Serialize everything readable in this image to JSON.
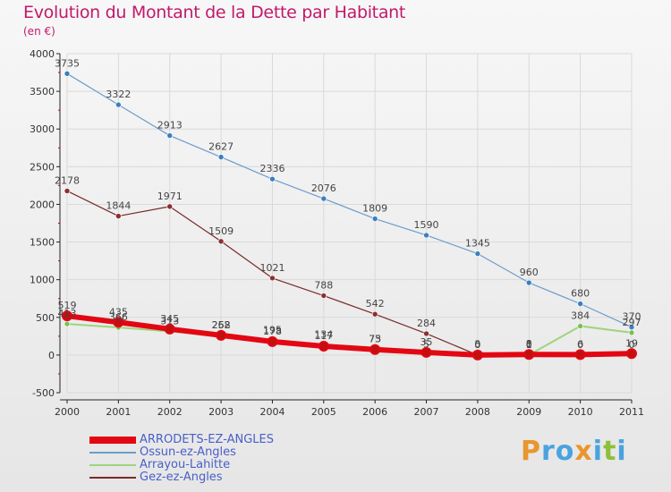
{
  "title": "Evolution du Montant de la Dette par Habitant",
  "subtitle": "(en €)",
  "logo": {
    "letters": [
      "P",
      "r",
      "o",
      "x",
      "i",
      "t",
      "i"
    ],
    "colors": [
      "#e8962e",
      "#4aa3df",
      "#4aa3df",
      "#e8962e",
      "#4aa3df",
      "#8fbf3a",
      "#4aa3df"
    ]
  },
  "chart_data": {
    "type": "line",
    "x": [
      "2000",
      "2001",
      "2002",
      "2003",
      "2004",
      "2005",
      "2006",
      "2007",
      "2008",
      "2009",
      "2010",
      "2011"
    ],
    "ylim": [
      -500,
      4000
    ],
    "yticks": [
      -500,
      0,
      500,
      1000,
      1500,
      2000,
      2500,
      3000,
      3500,
      4000
    ],
    "legend_position": "bottom-left",
    "series": [
      {
        "name": "Ossun-ez-Angles",
        "color": "#6b9dcc",
        "marker": "#3a7fc0",
        "width": 1.2,
        "values": [
          3735,
          3322,
          2913,
          2627,
          2336,
          2076,
          1809,
          1590,
          1345,
          960,
          680,
          370
        ],
        "labels": [
          "3735",
          "3322",
          "2913",
          "2627",
          "2336",
          "2076",
          "1809",
          "1590",
          "1345",
          "960",
          "680",
          "370"
        ]
      },
      {
        "name": "Gez-ez-Angles",
        "color": "#7a2a2a",
        "marker": "#8a3030",
        "width": 1.2,
        "values": [
          2178,
          1844,
          1971,
          1509,
          1021,
          788,
          542,
          284,
          0,
          0,
          0,
          0
        ],
        "labels": [
          "2178",
          "1844",
          "1971",
          "1509",
          "1021",
          "788",
          "542",
          "284",
          "0",
          "0",
          "0",
          "0"
        ]
      },
      {
        "name": "Arrayou-Lahitte",
        "color": "#9ed47a",
        "marker": "#7cc04e",
        "width": 2,
        "values": [
          413,
          366,
          313,
          258,
          195,
          134,
          75,
          5,
          5,
          1,
          384,
          297
        ],
        "labels": [
          "413",
          "366",
          "313",
          "258",
          "195",
          "134",
          "75",
          "5",
          "5",
          "1",
          "384",
          "297"
        ]
      },
      {
        "name": "ARRODETS-EZ-ANGLES",
        "color": "#e30613",
        "marker": "#c01010",
        "width": 6,
        "values": [
          519,
          435,
          345,
          262,
          178,
          117,
          73,
          35,
          0,
          8,
          6,
          19
        ],
        "labels": [
          "519",
          "435",
          "345",
          "262",
          "178",
          "117",
          "73",
          "35",
          "0",
          "8",
          "6",
          "19"
        ]
      }
    ],
    "legend_order": [
      "ARRODETS-EZ-ANGLES",
      "Ossun-ez-Angles",
      "Arrayou-Lahitte",
      "Gez-ez-Angles"
    ]
  }
}
